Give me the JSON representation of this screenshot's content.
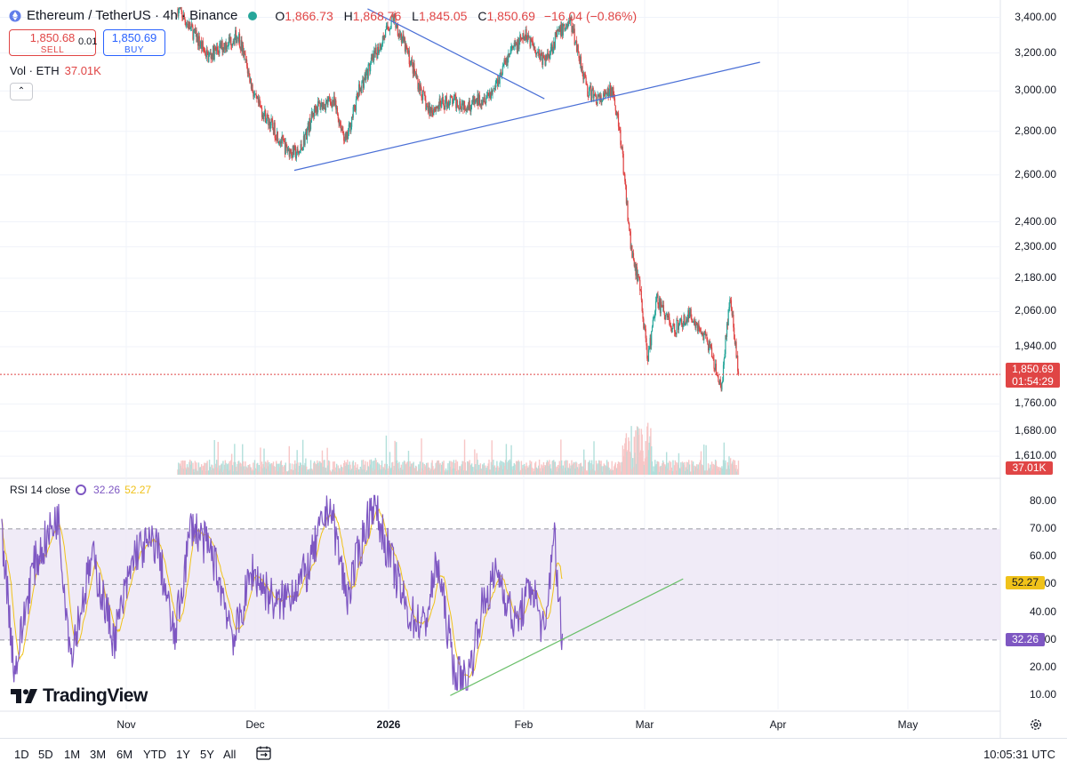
{
  "header": {
    "title": "Ethereum / TetherUS · 4h · Binance",
    "open_label": "O",
    "open": "1,866.73",
    "high_label": "H",
    "high": "1,868.76",
    "low_label": "L",
    "low": "1,845.05",
    "close_label": "C",
    "close": "1,850.69",
    "change": "−16.04 (−0.86%)"
  },
  "trade": {
    "sell_price": "1,850.68",
    "sell_label": "SELL",
    "spread": "0.01",
    "buy_price": "1,850.69",
    "buy_label": "BUY"
  },
  "volume": {
    "label": "Vol · ETH",
    "value": "37.01K"
  },
  "rsi": {
    "label": "RSI 14 close",
    "value": "32.26",
    "ma_value": "52.27"
  },
  "price_tag": {
    "price": "1,850.69",
    "countdown": "01:54:29"
  },
  "volume_tag": "37.01K",
  "rsi_tags": {
    "rsi": "32.26",
    "ma": "52.27"
  },
  "price_axis": [
    "3,400.00",
    "3,200.00",
    "3,000.00",
    "2,800.00",
    "2,600.00",
    "2,400.00",
    "2,300.00",
    "2,180.00",
    "2,060.00",
    "1,940.00",
    "1,760.00",
    "1,680.00",
    "1,610.00"
  ],
  "rsi_axis": [
    "80.00",
    "70.00",
    "60.00",
    "50.00",
    "40.00",
    "30.00",
    "20.00",
    "10.00"
  ],
  "time_axis": [
    "Nov",
    "Dec",
    "2026",
    "Feb",
    "Mar",
    "Apr",
    "May"
  ],
  "logo_text": "TradingView",
  "range_buttons": [
    "1D",
    "5D",
    "1M",
    "3M",
    "6M",
    "YTD",
    "1Y",
    "5Y",
    "All"
  ],
  "clock": "10:05:31 UTC",
  "colors": {
    "up": "#26a69a",
    "down": "#e04545",
    "rsi": "#7e57c2",
    "rsi_ma": "#f0c21a",
    "trendline": "#4a6fd6",
    "rsi_trend": "#6abf69",
    "band": "#ede7f6"
  },
  "chart_data": {
    "type": "candlestick",
    "symbol": "ETH/USDT",
    "interval": "4h",
    "exchange": "Binance",
    "price_scale": "log",
    "price_range": [
      1560,
      3460
    ],
    "price_path": [
      {
        "date": "2025-10-20",
        "price": 3450
      },
      {
        "date": "2025-10-27",
        "price": 3180
      },
      {
        "date": "2025-11-03",
        "price": 3300
      },
      {
        "date": "2025-11-07",
        "price": 2950
      },
      {
        "date": "2025-11-14",
        "price": 2720
      },
      {
        "date": "2025-11-17",
        "price": 2690
      },
      {
        "date": "2025-11-21",
        "price": 2920
      },
      {
        "date": "2025-11-25",
        "price": 2950
      },
      {
        "date": "2025-11-28",
        "price": 2750
      },
      {
        "date": "2025-12-01",
        "price": 3000
      },
      {
        "date": "2025-12-05",
        "price": 3200
      },
      {
        "date": "2025-12-09",
        "price": 3400
      },
      {
        "date": "2025-12-13",
        "price": 3150
      },
      {
        "date": "2025-12-17",
        "price": 2900
      },
      {
        "date": "2025-12-22",
        "price": 2950
      },
      {
        "date": "2025-12-27",
        "price": 2930
      },
      {
        "date": "2026-01-01",
        "price": 3000
      },
      {
        "date": "2026-01-05",
        "price": 3200
      },
      {
        "date": "2026-01-09",
        "price": 3300
      },
      {
        "date": "2026-01-13",
        "price": 3150
      },
      {
        "date": "2026-01-16",
        "price": 3300
      },
      {
        "date": "2026-01-19",
        "price": 3380
      },
      {
        "date": "2026-01-23",
        "price": 3000
      },
      {
        "date": "2026-01-26",
        "price": 2950
      },
      {
        "date": "2026-01-29",
        "price": 3010
      },
      {
        "date": "2026-01-31",
        "price": 2700
      },
      {
        "date": "2026-02-02",
        "price": 2300
      },
      {
        "date": "2026-02-04",
        "price": 2150
      },
      {
        "date": "2026-02-06",
        "price": 1900
      },
      {
        "date": "2026-02-08",
        "price": 2100
      },
      {
        "date": "2026-02-12",
        "price": 2000
      },
      {
        "date": "2026-02-16",
        "price": 2050
      },
      {
        "date": "2026-02-20",
        "price": 1950
      },
      {
        "date": "2026-02-23",
        "price": 1800
      },
      {
        "date": "2026-02-25",
        "price": 2110
      },
      {
        "date": "2026-02-27",
        "price": 1850.69
      }
    ],
    "last_price": 1850.69,
    "trendlines": [
      {
        "from": {
          "date": "2025-11-16",
          "price": 2620
        },
        "to": {
          "date": "2026-03-04",
          "price": 3150
        }
      },
      {
        "from": {
          "date": "2025-12-03",
          "price": 3450
        },
        "to": {
          "date": "2026-01-13",
          "price": 2960
        }
      }
    ],
    "rsi": {
      "period": 14,
      "range": [
        5,
        85
      ],
      "bands": [
        30,
        50,
        70
      ],
      "rsi_path": [
        {
          "date": "2025-10-20",
          "value": 70
        },
        {
          "date": "2025-10-23",
          "value": 18
        },
        {
          "date": "2025-10-27",
          "value": 55
        },
        {
          "date": "2025-11-02",
          "value": 75
        },
        {
          "date": "2025-11-05",
          "value": 25
        },
        {
          "date": "2025-11-10",
          "value": 60
        },
        {
          "date": "2025-11-15",
          "value": 30
        },
        {
          "date": "2025-11-20",
          "value": 62
        },
        {
          "date": "2025-11-25",
          "value": 65
        },
        {
          "date": "2025-11-29",
          "value": 30
        },
        {
          "date": "2025-12-03",
          "value": 72
        },
        {
          "date": "2025-12-08",
          "value": 60
        },
        {
          "date": "2025-12-13",
          "value": 30
        },
        {
          "date": "2025-12-17",
          "value": 55
        },
        {
          "date": "2025-12-23",
          "value": 42
        },
        {
          "date": "2025-12-30",
          "value": 55
        },
        {
          "date": "2026-01-04",
          "value": 80
        },
        {
          "date": "2026-01-08",
          "value": 45
        },
        {
          "date": "2026-01-14",
          "value": 80
        },
        {
          "date": "2026-01-18",
          "value": 60
        },
        {
          "date": "2026-01-22",
          "value": 40
        },
        {
          "date": "2026-01-26",
          "value": 35
        },
        {
          "date": "2026-01-29",
          "value": 58
        },
        {
          "date": "2026-02-02",
          "value": 18
        },
        {
          "date": "2026-02-05",
          "value": 15
        },
        {
          "date": "2026-02-08",
          "value": 40
        },
        {
          "date": "2026-02-12",
          "value": 55
        },
        {
          "date": "2026-02-16",
          "value": 35
        },
        {
          "date": "2026-02-20",
          "value": 50
        },
        {
          "date": "2026-02-23",
          "value": 30
        },
        {
          "date": "2026-02-25",
          "value": 72
        },
        {
          "date": "2026-02-26",
          "value": 45
        },
        {
          "date": "2026-02-27",
          "value": 32.26
        }
      ],
      "last_rsi": 32.26,
      "last_ma": 52.27,
      "trendline": {
        "from": {
          "date": "2026-02-01",
          "value": 10
        },
        "to": {
          "date": "2026-03-27",
          "value": 52
        }
      }
    },
    "x_axis_labels": [
      "Nov",
      "Dec",
      "2026",
      "Feb",
      "Mar",
      "Apr",
      "May"
    ]
  }
}
